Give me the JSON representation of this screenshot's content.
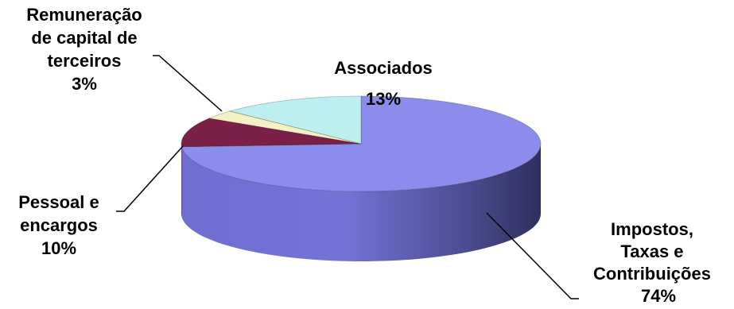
{
  "chart_data": {
    "type": "pie",
    "title": "",
    "slices": [
      {
        "label_lines": [
          "Impostos,",
          "Taxas e",
          "Contribuições"
        ],
        "value": 74,
        "value_label": "74%",
        "color": "#8B8CEC",
        "side_color": "#5C5DB0"
      },
      {
        "label_lines": [
          "Pessoal e",
          "encargos"
        ],
        "value": 10,
        "value_label": "10%",
        "color": "#7A1F45",
        "side_color": "#4E1029"
      },
      {
        "label_lines": [
          "Remuneração",
          "de capital de",
          "terceiros"
        ],
        "value": 3,
        "value_label": "3%",
        "color": "#F3F1C4",
        "side_color": "#C9C79A"
      },
      {
        "label_lines": [
          "Associados"
        ],
        "value": 13,
        "value_label": "13%",
        "color": "#BDEFF0",
        "side_color": "#8FC5C6"
      }
    ]
  }
}
